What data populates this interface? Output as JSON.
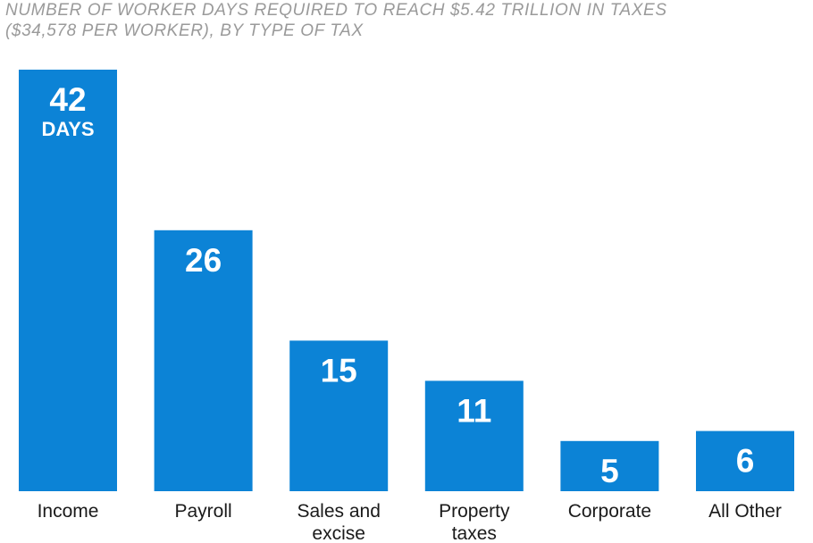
{
  "chart_data": {
    "type": "bar",
    "title": "NUMBER OF WORKER DAYS REQUIRED TO REACH $5.42 TRILLION IN TAXES",
    "subtitle": "($34,578 PER WORKER), BY TYPE OF TAX",
    "categories": [
      "Income",
      "Payroll",
      "Sales and excise",
      "Property taxes",
      "Corporate",
      "All Other"
    ],
    "category_lines": [
      [
        "Income"
      ],
      [
        "Payroll"
      ],
      [
        "Sales and",
        "excise"
      ],
      [
        "Property",
        "taxes"
      ],
      [
        "Corporate"
      ],
      [
        "All Other"
      ]
    ],
    "values": [
      42,
      26,
      15,
      11,
      5,
      6
    ],
    "value_labels": [
      "42",
      "26",
      "15",
      "11",
      "5",
      "6"
    ],
    "first_bar_unit": "DAYS",
    "ylim": [
      0,
      42
    ],
    "grid": false,
    "legend": "none",
    "xlabel": "",
    "ylabel": ""
  },
  "colors": {
    "bar": "#0c83d6",
    "title": "#9a9a9a",
    "value_text": "#ffffff",
    "category_text": "#1a1a1a"
  }
}
